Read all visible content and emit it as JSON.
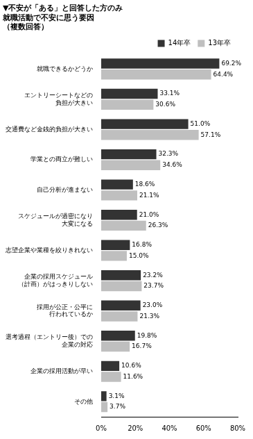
{
  "chart_data": {
    "type": "bar",
    "orientation": "horizontal",
    "title": [
      "▼不安が「ある」と回答した方のみ",
      "就職活動で不安に思う要因",
      "（複数回答）"
    ],
    "categories": [
      "就職できるかどうか",
      [
        "エントリーシートなどの",
        "負担が大きい"
      ],
      "交通費など金銭的負担が大きい",
      "学業との両立が難しい",
      "自己分析が進まない",
      [
        "スケジュールが過密になり",
        "大変になる"
      ],
      "志望企業や業種を絞りきれない",
      [
        "企業の採用スケジュール",
        "（計画）がはっきりしない"
      ],
      [
        "採用が公正・公平に",
        "行われているか"
      ],
      [
        "選考過程（エントリー後）での",
        "企業の対応"
      ],
      "企業の採用活動が早い",
      "その他"
    ],
    "series": [
      {
        "name": "14年卒",
        "color": "#333333",
        "values": [
          69.2,
          33.1,
          51.0,
          32.3,
          18.6,
          21.0,
          16.8,
          23.2,
          23.0,
          19.8,
          10.6,
          3.1
        ],
        "value_labels": [
          "69.2%",
          "33.1%",
          "51.0%",
          "32.3%",
          "18.6%",
          "21.0%",
          "16.8%",
          "23.2%",
          "23.0%",
          "19.8%",
          "10.6%",
          "3.1%"
        ]
      },
      {
        "name": "13年卒",
        "color": "#bfbfbf",
        "values": [
          64.4,
          30.6,
          57.1,
          34.6,
          21.1,
          26.3,
          15.0,
          23.7,
          21.3,
          16.7,
          11.6,
          3.7
        ],
        "value_labels": [
          "64.4%",
          "30.6%",
          "57.1%",
          "34.6%",
          "21.1%",
          "26.3%",
          "15.0%",
          "23.7%",
          "21.3%",
          "16.7%",
          "11.6%",
          "3.7%"
        ]
      }
    ],
    "xlim": [
      0,
      80
    ],
    "xticks": [
      {
        "value": 0,
        "label": "0%"
      },
      {
        "value": 20,
        "label": "20%"
      },
      {
        "value": 40,
        "label": "40%"
      },
      {
        "value": 60,
        "label": "60%"
      },
      {
        "value": 80,
        "label": "80%"
      }
    ],
    "grid": false,
    "legend": "top-right",
    "data_labels": true
  }
}
